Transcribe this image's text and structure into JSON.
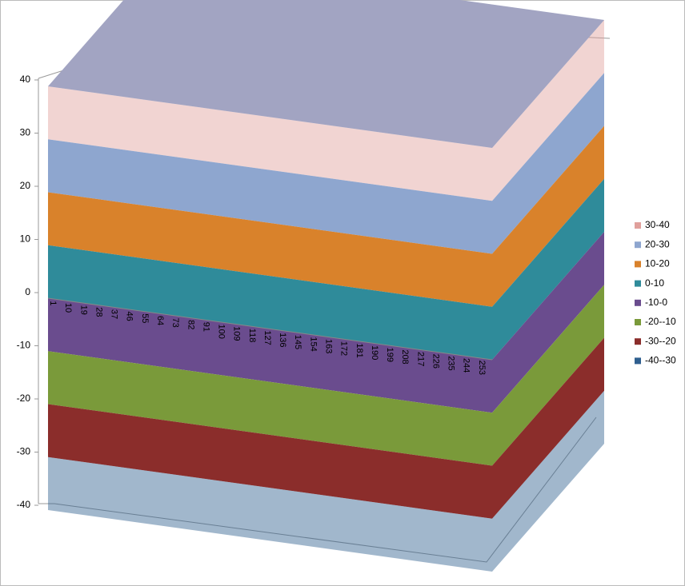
{
  "chart_data": {
    "type": "surface",
    "categories": [
      "1",
      "10",
      "19",
      "28",
      "37",
      "46",
      "55",
      "64",
      "73",
      "82",
      "91",
      "100",
      "109",
      "118",
      "127",
      "136",
      "145",
      "154",
      "163",
      "172",
      "181",
      "190",
      "199",
      "208",
      "217",
      "226",
      "235",
      "244",
      "253"
    ],
    "ylim": [
      -40,
      40
    ],
    "yticks": [
      -40,
      -30,
      -20,
      -10,
      0,
      10,
      20,
      30,
      40
    ],
    "bands": [
      {
        "name": "30-40",
        "color": "#e0a09c",
        "from": 30,
        "to": 40
      },
      {
        "name": "20-30",
        "color": "#8ea6cf",
        "from": 20,
        "to": 30
      },
      {
        "name": "10-20",
        "color": "#d9822b",
        "from": 10,
        "to": 20
      },
      {
        "name": "0-10",
        "color": "#2f8b9a",
        "from": 0,
        "to": 10
      },
      {
        "name": "-10-0",
        "color": "#6a4c8e",
        "from": -10,
        "to": 0
      },
      {
        "name": "-20--10",
        "color": "#7a9a3a",
        "from": -20,
        "to": -10
      },
      {
        "name": "-30--20",
        "color": "#8b2d2b",
        "from": -30,
        "to": -20
      },
      {
        "name": "-40--30",
        "color": "#2f5f8f",
        "from": -40,
        "to": -30
      }
    ],
    "legend": "right"
  }
}
